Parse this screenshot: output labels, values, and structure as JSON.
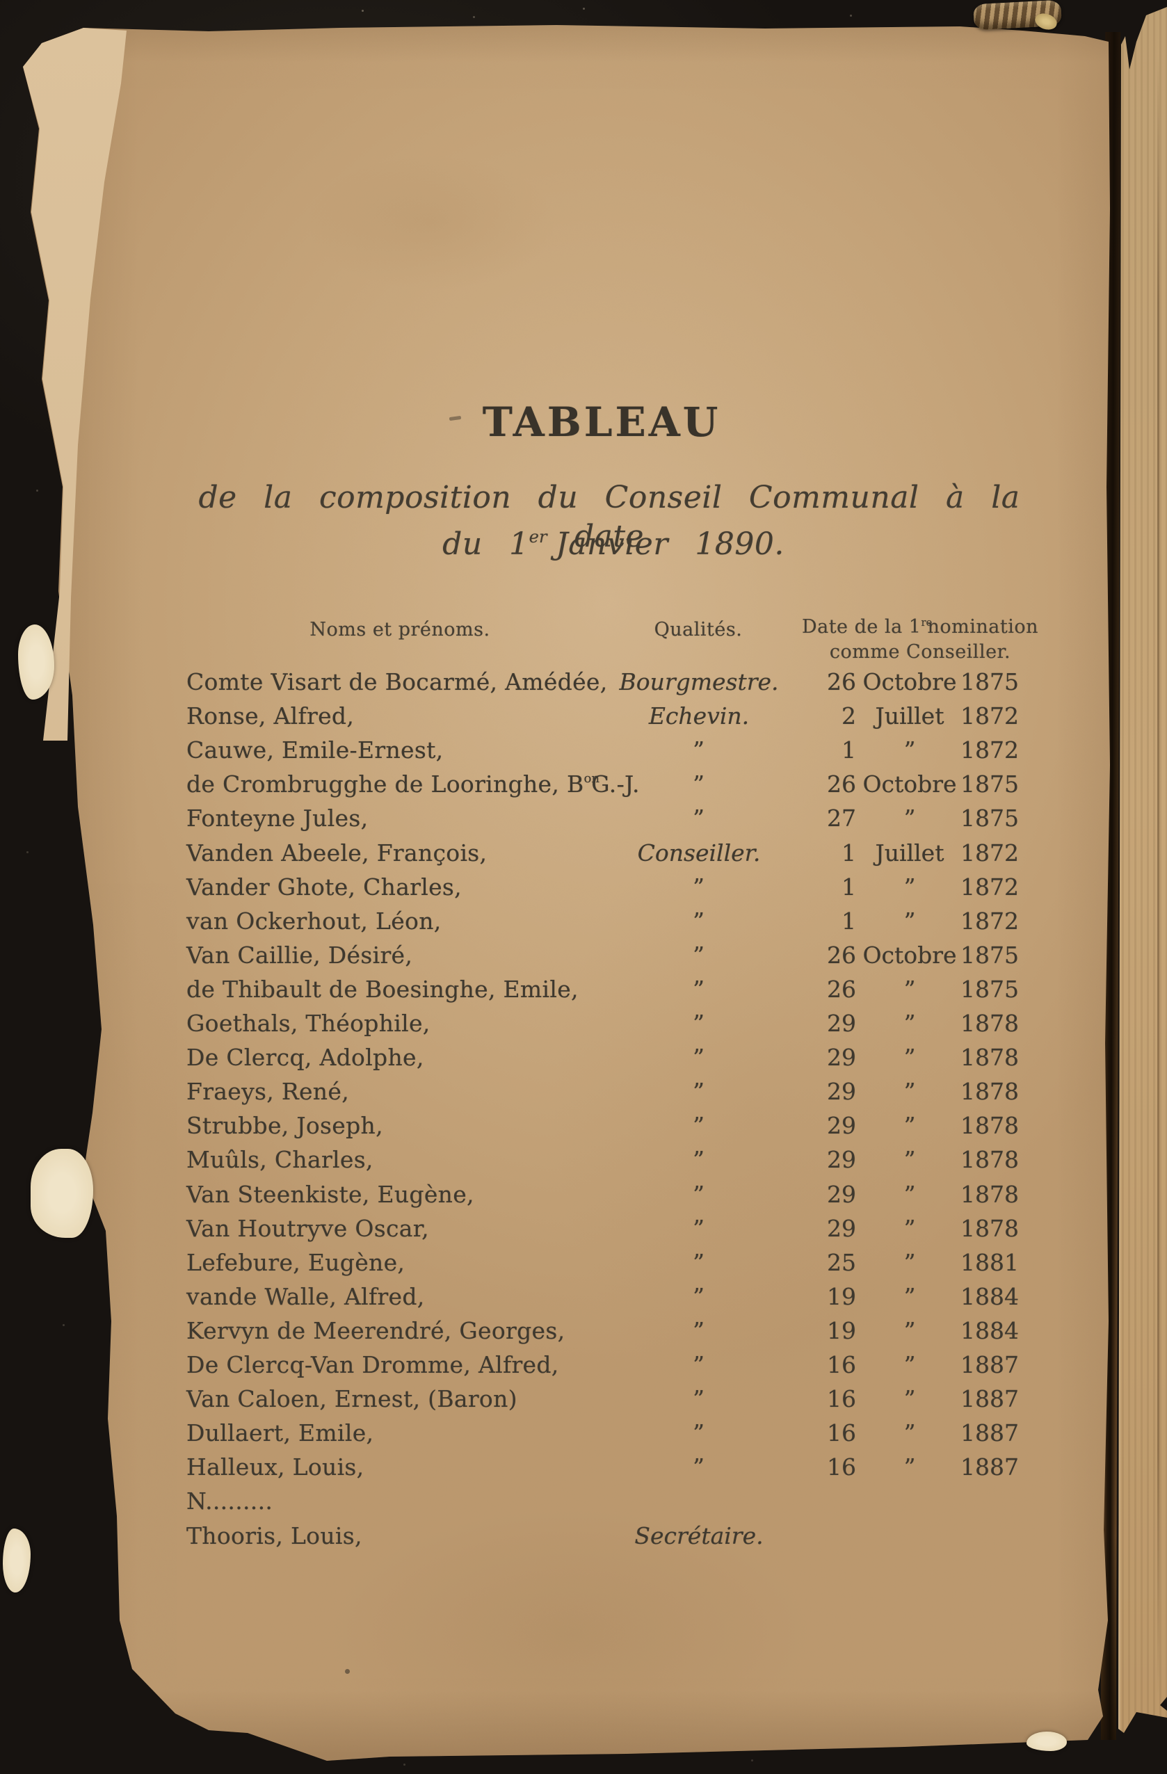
{
  "document": {
    "title": "TABLEAU",
    "subtitle_line1": "de la composition du Conseil Communal à la date",
    "subtitle_line2_parts": [
      "du 1",
      "er",
      " Janvier 1890."
    ],
    "table": {
      "header_names": "Noms et prénoms.",
      "header_qualites": "Qualités.",
      "header_date_line1_parts": [
        "Date de la 1",
        "re",
        " nomination"
      ],
      "header_date_line2": "comme Conseiller.",
      "ditto_mark": "”",
      "rows": [
        {
          "name_parts": [
            "Comte Visart de Bocarmé, Amédée,"
          ],
          "qualite": "Bourgmestre.",
          "day": "26",
          "month": "Octobre",
          "year": "1875"
        },
        {
          "name_parts": [
            "Ronse, Alfred,"
          ],
          "qualite": "Echevin.",
          "day": "2",
          "month": "Juillet",
          "year": "1872"
        },
        {
          "name_parts": [
            "Cauwe, Emile-Ernest,"
          ],
          "qualite": "”",
          "day": "1",
          "month": "”",
          "year": "1872"
        },
        {
          "name_parts": [
            "de Crombrugghe de Looringhe, B",
            "on",
            " G.-J."
          ],
          "qualite": "”",
          "day": "26",
          "month": "Octobre",
          "year": "1875"
        },
        {
          "name_parts": [
            "Fonteyne Jules,"
          ],
          "qualite": "”",
          "day": "27",
          "month": "”",
          "year": "1875"
        },
        {
          "name_parts": [
            "Vanden Abeele, François,"
          ],
          "qualite": "Conseiller.",
          "day": "1",
          "month": "Juillet",
          "year": "1872"
        },
        {
          "name_parts": [
            "Vander Ghote, Charles,"
          ],
          "qualite": "”",
          "day": "1",
          "month": "”",
          "year": "1872"
        },
        {
          "name_parts": [
            "van Ockerhout, Léon,"
          ],
          "qualite": "”",
          "day": "1",
          "month": "”",
          "year": "1872"
        },
        {
          "name_parts": [
            "Van Caillie, Désiré,"
          ],
          "qualite": "”",
          "day": "26",
          "month": "Octobre",
          "year": "1875"
        },
        {
          "name_parts": [
            "de Thibault de Boesinghe, Emile,"
          ],
          "qualite": "”",
          "day": "26",
          "month": "”",
          "year": "1875"
        },
        {
          "name_parts": [
            "Goethals, Théophile,"
          ],
          "qualite": "”",
          "day": "29",
          "month": "”",
          "year": "1878"
        },
        {
          "name_parts": [
            "De Clercq, Adolphe,"
          ],
          "qualite": "”",
          "day": "29",
          "month": "”",
          "year": "1878"
        },
        {
          "name_parts": [
            "Fraeys, René,"
          ],
          "qualite": "”",
          "day": "29",
          "month": "”",
          "year": "1878"
        },
        {
          "name_parts": [
            "Strubbe, Joseph,"
          ],
          "qualite": "”",
          "day": "29",
          "month": "”",
          "year": "1878"
        },
        {
          "name_parts": [
            "Muûls, Charles,"
          ],
          "qualite": "”",
          "day": "29",
          "month": "”",
          "year": "1878"
        },
        {
          "name_parts": [
            "Van Steenkiste, Eugène,"
          ],
          "qualite": "”",
          "day": "29",
          "month": "”",
          "year": "1878"
        },
        {
          "name_parts": [
            "Van Houtryve Oscar,"
          ],
          "qualite": "”",
          "day": "29",
          "month": "”",
          "year": "1878"
        },
        {
          "name_parts": [
            "Lefebure, Eugène,"
          ],
          "qualite": "”",
          "day": "25",
          "month": "”",
          "year": "1881"
        },
        {
          "name_parts": [
            "vande Walle, Alfred,"
          ],
          "qualite": "”",
          "day": "19",
          "month": "”",
          "year": "1884"
        },
        {
          "name_parts": [
            "Kervyn de Meerendré, Georges,"
          ],
          "qualite": "”",
          "day": "19",
          "month": "”",
          "year": "1884"
        },
        {
          "name_parts": [
            "De Clercq-Van Dromme, Alfred,"
          ],
          "qualite": "”",
          "day": "16",
          "month": "”",
          "year": "1887"
        },
        {
          "name_parts": [
            "Van Caloen, Ernest, (Baron)"
          ],
          "qualite": "”",
          "day": "16",
          "month": "”",
          "year": "1887"
        },
        {
          "name_parts": [
            "Dullaert, Emile,"
          ],
          "qualite": "”",
          "day": "16",
          "month": "”",
          "year": "1887"
        },
        {
          "name_parts": [
            "Halleux, Louis,"
          ],
          "qualite": "”",
          "day": "16",
          "month": "”",
          "year": "1887"
        },
        {
          "name_parts": [
            "N........."
          ]
        },
        {
          "name_parts": [
            "Thooris, Louis,"
          ],
          "qualite": "Secrétaire."
        }
      ]
    }
  },
  "colors": {
    "background": "#171310",
    "paper": "#c7a67c",
    "paper_light_remnant": "#d5ba93",
    "paper_chip": "#ecdcba",
    "ink": "#3e382e",
    "gap_shadow": "#3a2814",
    "headband_dark": "#664e31",
    "headband_light": "#b39467"
  }
}
